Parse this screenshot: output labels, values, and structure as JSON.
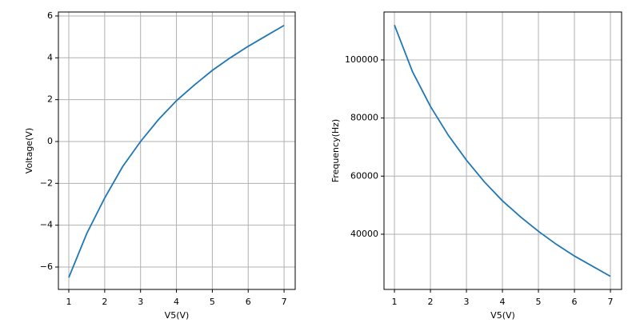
{
  "chart_data": [
    {
      "type": "line",
      "xlabel": "V5(V)",
      "ylabel": "Voltage(V)",
      "x": [
        1,
        1.5,
        2,
        2.5,
        3,
        3.5,
        4,
        4.5,
        5,
        5.5,
        6,
        6.5,
        7
      ],
      "values": [
        -6.5,
        -4.4,
        -2.7,
        -1.2,
        0,
        1.05,
        1.95,
        2.7,
        3.4,
        4.0,
        4.55,
        5.05,
        5.55
      ],
      "color": "#1f77b4",
      "grid": true,
      "xlim": [
        0.71,
        7.31
      ],
      "ylim": [
        -7.07,
        6.19
      ],
      "xticks": [
        1,
        2,
        3,
        4,
        5,
        6,
        7
      ],
      "yticks": [
        {
          "value": -6,
          "label": "−6"
        },
        {
          "value": -4,
          "label": "−4"
        },
        {
          "value": -2,
          "label": "−2"
        },
        0,
        2,
        4,
        6
      ]
    },
    {
      "type": "line",
      "xlabel": "V5(V)",
      "ylabel": "Frequency(Hz)",
      "x": [
        1,
        1.5,
        2,
        2.5,
        3,
        3.5,
        4,
        4.5,
        5,
        5.5,
        6,
        6.5,
        7
      ],
      "values": [
        112000,
        96000,
        84000,
        74000,
        65500,
        58000,
        51500,
        46000,
        41000,
        36500,
        32500,
        29000,
        25500
      ],
      "color": "#1f77b4",
      "grid": true,
      "xlim": [
        0.71,
        7.31
      ],
      "ylim": [
        21000,
        116500
      ],
      "xticks": [
        1,
        2,
        3,
        4,
        5,
        6,
        7
      ],
      "yticks": [
        40000,
        60000,
        80000,
        100000
      ]
    }
  ]
}
